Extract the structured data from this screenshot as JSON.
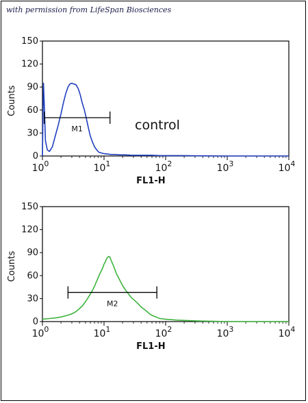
{
  "credit_text": "with permission from LifeSpan Biosciences",
  "chart_data": [
    {
      "type": "line",
      "title": "",
      "xlabel": "FL1-H",
      "ylabel": "Counts",
      "x_scale": "log",
      "xlim": [
        1,
        10000
      ],
      "ylim": [
        0,
        150
      ],
      "x_ticks": [
        {
          "base": "10",
          "exp": "0"
        },
        {
          "base": "10",
          "exp": "1"
        },
        {
          "base": "10",
          "exp": "2"
        },
        {
          "base": "10",
          "exp": "3"
        },
        {
          "base": "10",
          "exp": "4"
        }
      ],
      "y_ticks": [
        "0",
        "30",
        "60",
        "90",
        "120",
        "150"
      ],
      "y_tick_values": [
        0,
        30,
        60,
        90,
        120,
        150
      ],
      "grid": false,
      "annotation": "control",
      "series": [
        {
          "color": "#1f3fbf",
          "x": [
            1.0,
            1.04,
            1.08,
            1.12,
            1.2,
            1.3,
            1.45,
            1.6,
            1.8,
            2.0,
            2.2,
            2.4,
            2.6,
            2.8,
            3.0,
            3.2,
            3.5,
            3.8,
            4.1,
            4.4,
            4.8,
            5.2,
            5.6,
            6.0,
            6.5,
            7.0,
            7.6,
            8.2,
            9.0,
            10.0,
            11.5,
            13.0,
            15.0,
            18.0,
            22.0,
            28.0,
            35.0,
            45.0,
            60.0,
            80.0,
            110.0,
            150.0,
            200.0,
            300.0,
            500.0,
            1000.0,
            2000.0,
            5000.0,
            10000.0
          ],
          "y": [
            0,
            95,
            60,
            20,
            8,
            6,
            12,
            25,
            40,
            55,
            70,
            82,
            90,
            94,
            95,
            94,
            93,
            88,
            80,
            70,
            60,
            48,
            36,
            26,
            18,
            12,
            8,
            5,
            4,
            3,
            2.5,
            2,
            2,
            1.5,
            1.5,
            1,
            1,
            1,
            1,
            0.5,
            0.5,
            0.5,
            0.5,
            0.3,
            0.2,
            0,
            0,
            0,
            0
          ]
        }
      ],
      "marker": {
        "label": "M1",
        "x_range": [
          1.07,
          12.5
        ],
        "y": 50
      }
    },
    {
      "type": "line",
      "title": "",
      "xlabel": "FL1-H",
      "ylabel": "Counts",
      "x_scale": "log",
      "xlim": [
        1,
        10000
      ],
      "ylim": [
        0,
        150
      ],
      "x_ticks": [
        {
          "base": "10",
          "exp": "0"
        },
        {
          "base": "10",
          "exp": "1"
        },
        {
          "base": "10",
          "exp": "2"
        },
        {
          "base": "10",
          "exp": "3"
        },
        {
          "base": "10",
          "exp": "4"
        }
      ],
      "y_ticks": [
        "0",
        "30",
        "60",
        "90",
        "120",
        "150"
      ],
      "y_tick_values": [
        0,
        30,
        60,
        90,
        120,
        150
      ],
      "grid": false,
      "series": [
        {
          "color": "#3cb33c",
          "x": [
            1.0,
            1.3,
            1.7,
            2.0,
            2.5,
            3.0,
            3.5,
            4.0,
            4.5,
            5.0,
            5.5,
            6.0,
            6.5,
            7.0,
            7.5,
            8.0,
            8.5,
            9.0,
            9.5,
            10.0,
            10.5,
            11.0,
            11.5,
            12.0,
            12.5,
            13.0,
            14.0,
            15.0,
            16.0,
            17.0,
            18.0,
            20.0,
            22.0,
            25.0,
            28.0,
            32.0,
            36.0,
            40.0,
            45.0,
            50.0,
            55.0,
            60.0,
            70.0,
            80.0,
            100.0,
            150.0,
            300.0,
            1000.0,
            10000.0
          ],
          "y": [
            3,
            4,
            5,
            6,
            8,
            10,
            13,
            17,
            21,
            26,
            31,
            36,
            41,
            46,
            52,
            57,
            62,
            66,
            70,
            75,
            78,
            82,
            84,
            85,
            84,
            80,
            74,
            68,
            62,
            58,
            54,
            47,
            42,
            36,
            31,
            27,
            23,
            19,
            16,
            13,
            10,
            8,
            6,
            4,
            3,
            2,
            1,
            0,
            0
          ]
        }
      ],
      "marker": {
        "label": "M2",
        "x_range": [
          2.6,
          72.0
        ],
        "y": 38
      }
    }
  ]
}
